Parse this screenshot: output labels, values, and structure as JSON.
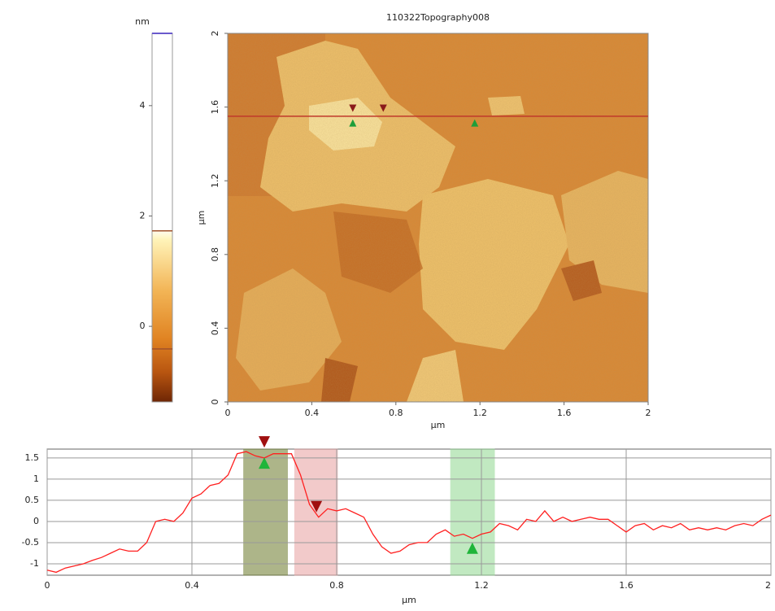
{
  "chart_data": [
    {
      "type": "colorbar",
      "ylabel": "nm",
      "ylim": [
        -1.37,
        5.31
      ],
      "yticks": [
        0,
        2,
        4
      ],
      "range_lines": [
        1.73,
        -0.41
      ],
      "range_color": "#a0522d",
      "top_color": "#6a5acd"
    },
    {
      "type": "image",
      "title": "110322Topography008",
      "xlabel": "µm",
      "ylabel": "µm",
      "xlim": [
        0,
        2
      ],
      "ylim": [
        0,
        2
      ],
      "xticks": [
        0,
        0.4,
        0.8,
        1.2,
        1.6,
        2
      ],
      "yticks": [
        0,
        0.4,
        0.8,
        1.2,
        1.6,
        2
      ],
      "profile_y": 1.55,
      "profile_color": "#c0392b",
      "cursors": [
        {
          "x": 0.595,
          "y": 1.594,
          "color": "#8b1a1a",
          "shape": "down"
        },
        {
          "x": 0.74,
          "y": 1.594,
          "color": "#8b1a1a",
          "shape": "down"
        },
        {
          "x": 0.595,
          "y": 1.514,
          "color": "#1e9e3a",
          "shape": "up"
        },
        {
          "x": 1.175,
          "y": 1.514,
          "color": "#1e9e3a",
          "shape": "up"
        }
      ]
    },
    {
      "type": "line",
      "xlabel": "µm",
      "xlim": [
        0,
        2
      ],
      "ylim": [
        -1.27,
        1.71
      ],
      "xticks": [
        0,
        0.4,
        0.8,
        1.2,
        1.6,
        2
      ],
      "yticks": [
        1.5,
        1,
        0.5,
        0,
        -0.5,
        -1
      ],
      "grid": true,
      "color": "#ff2020",
      "x": [
        0,
        0.025,
        0.05,
        0.075,
        0.1,
        0.125,
        0.15,
        0.175,
        0.2,
        0.225,
        0.25,
        0.275,
        0.3,
        0.325,
        0.35,
        0.375,
        0.4,
        0.425,
        0.45,
        0.475,
        0.5,
        0.525,
        0.55,
        0.575,
        0.6,
        0.625,
        0.65,
        0.675,
        0.7,
        0.725,
        0.75,
        0.775,
        0.8,
        0.825,
        0.85,
        0.875,
        0.9,
        0.925,
        0.95,
        0.975,
        1.0,
        1.025,
        1.05,
        1.075,
        1.1,
        1.125,
        1.15,
        1.175,
        1.2,
        1.225,
        1.25,
        1.275,
        1.3,
        1.325,
        1.35,
        1.375,
        1.4,
        1.425,
        1.45,
        1.475,
        1.5,
        1.525,
        1.55,
        1.575,
        1.6,
        1.625,
        1.65,
        1.675,
        1.7,
        1.725,
        1.75,
        1.775,
        1.8,
        1.825,
        1.85,
        1.875,
        1.9,
        1.925,
        1.95,
        1.975,
        2.0
      ],
      "values": [
        -1.15,
        -1.2,
        -1.1,
        -1.05,
        -1.0,
        -0.92,
        -0.85,
        -0.75,
        -0.65,
        -0.7,
        -0.7,
        -0.5,
        0.0,
        0.05,
        0.0,
        0.2,
        0.55,
        0.65,
        0.85,
        0.9,
        1.1,
        1.6,
        1.65,
        1.55,
        1.5,
        1.6,
        1.6,
        1.6,
        1.1,
        0.4,
        0.1,
        0.3,
        0.25,
        0.3,
        0.2,
        0.1,
        -0.3,
        -0.6,
        -0.75,
        -0.7,
        -0.55,
        -0.5,
        -0.5,
        -0.3,
        -0.2,
        -0.35,
        -0.3,
        -0.4,
        -0.3,
        -0.25,
        -0.05,
        -0.1,
        -0.2,
        0.05,
        0.0,
        0.25,
        0.0,
        0.1,
        0.0,
        0.05,
        0.1,
        0.05,
        0.05,
        -0.1,
        -0.25,
        -0.1,
        -0.05,
        -0.2,
        -0.1,
        -0.15,
        -0.05,
        -0.2,
        -0.15,
        -0.2,
        -0.15,
        -0.2,
        -0.1,
        -0.05,
        -0.1,
        0.05,
        0.15
      ],
      "regions": [
        {
          "range": [
            0.543,
            0.664
          ],
          "color": "#6b7a2a"
        },
        {
          "range": [
            0.684,
            0.802
          ],
          "color": "#e8a0a0"
        },
        {
          "range": [
            1.115,
            1.236
          ],
          "color": "#8fd88f"
        }
      ],
      "cursors": [
        {
          "x": 0.6,
          "y": 1.88,
          "color": "#a01010",
          "shape": "down"
        },
        {
          "x": 0.744,
          "y": 0.35,
          "color": "#a01010",
          "shape": "down"
        },
        {
          "x": 0.6,
          "y": 1.38,
          "color": "#1fb53a",
          "shape": "up"
        },
        {
          "x": 1.175,
          "y": -0.63,
          "color": "#1fb53a",
          "shape": "up"
        }
      ]
    }
  ]
}
